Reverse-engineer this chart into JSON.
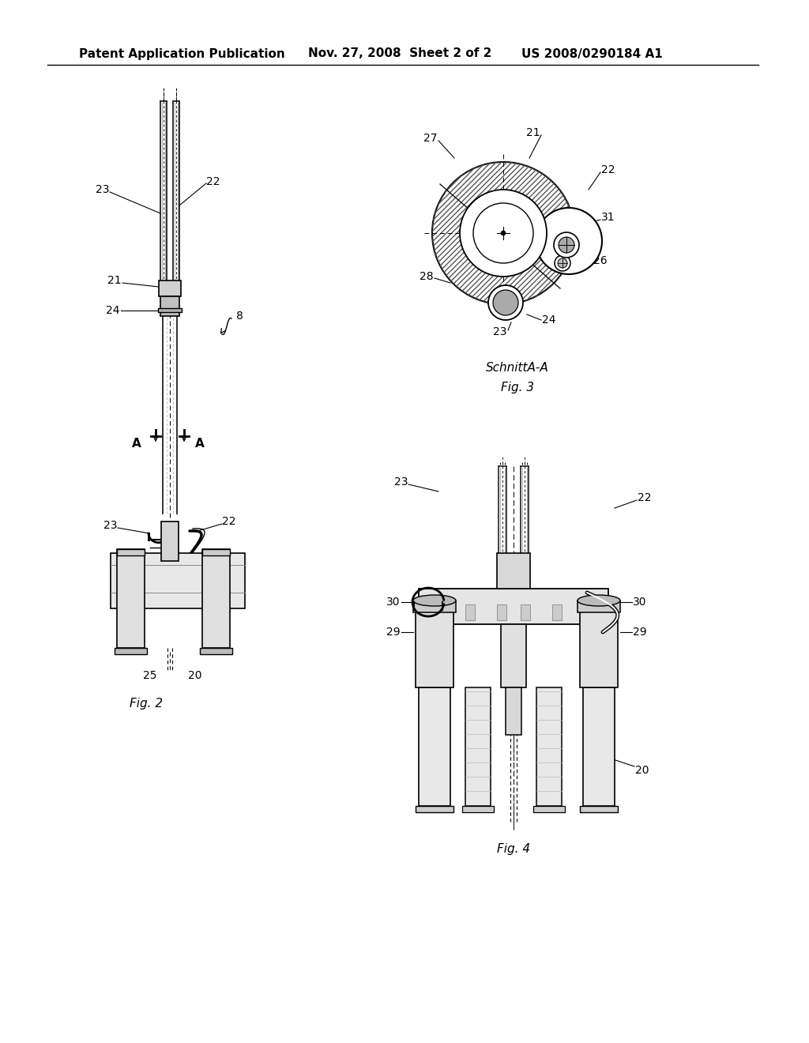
{
  "background_color": "#ffffff",
  "header_text": "Patent Application Publication",
  "header_date": "Nov. 27, 2008  Sheet 2 of 2",
  "header_patent": "US 2008/0290184 A1",
  "header_fontsize": 11,
  "fig2_label": "Fig. 2",
  "fig3_label": "Fig. 3",
  "fig4_label": "Fig. 4",
  "fig3_sublabel": "SchnittA-A",
  "lc": "#333333",
  "lw_main": 1.5,
  "lw_thin": 0.8
}
